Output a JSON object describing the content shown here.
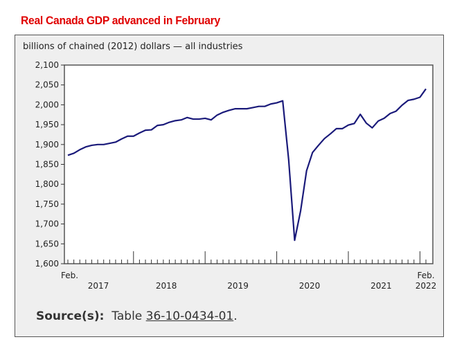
{
  "title": "Real Canada GDP advanced in February",
  "source": {
    "label": "Source(s):",
    "prefix": "Table",
    "link": "36-10-0434-01",
    "suffix": "."
  },
  "chart_data": {
    "type": "line",
    "ylabel": "billions of chained (2012) dollars — all industries",
    "ylim": [
      1600,
      2100
    ],
    "yticks": [
      1600,
      1650,
      1700,
      1750,
      1800,
      1850,
      1900,
      1950,
      2000,
      2050,
      2100
    ],
    "ytick_labels": [
      "1,600",
      "1,650",
      "1,700",
      "1,750",
      "1,800",
      "1,850",
      "1,900",
      "1,950",
      "2,000",
      "2,050",
      "2,100"
    ],
    "x_start": "2017-02",
    "x_end": "2022-02",
    "xtick_labels": {
      "start": "Feb.",
      "years": [
        "2017",
        "2018",
        "2019",
        "2020",
        "2021"
      ],
      "end_month": "Feb.",
      "end_year": "2022"
    },
    "line_color": "#1a1a7a",
    "grid": false,
    "values": [
      1873,
      1878,
      1887,
      1894,
      1898,
      1900,
      1900,
      1903,
      1906,
      1914,
      1921,
      1921,
      1929,
      1936,
      1937,
      1948,
      1950,
      1956,
      1960,
      1962,
      1968,
      1964,
      1964,
      1966,
      1962,
      1974,
      1981,
      1986,
      1990,
      1990,
      1990,
      1993,
      1996,
      1996,
      2002,
      2005,
      2010,
      1862,
      1659,
      1733,
      1834,
      1880,
      1898,
      1915,
      1927,
      1940,
      1940,
      1949,
      1953,
      1976,
      1954,
      1942,
      1959,
      1966,
      1978,
      1984,
      1999,
      2011,
      2014,
      2019,
      2040
    ]
  }
}
